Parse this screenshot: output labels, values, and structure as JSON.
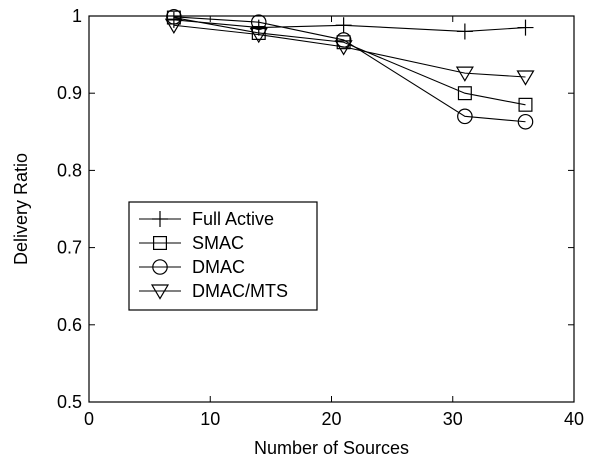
{
  "chart_data": {
    "type": "line",
    "title": "",
    "xlabel": "Number of Sources",
    "ylabel": "Delivery Ratio",
    "xlim": [
      0,
      40
    ],
    "ylim": [
      0.5,
      1.0
    ],
    "xticks": [
      "0",
      "10",
      "20",
      "30",
      "40"
    ],
    "yticks": [
      "0.5",
      "0.6",
      "0.7",
      "0.8",
      "0.9",
      "1"
    ],
    "grid": false,
    "legend_position": "center-left",
    "series": [
      {
        "name": "Full Active",
        "marker": "plus",
        "x": [
          7,
          14,
          21,
          31,
          36
        ],
        "values": [
          0.995,
          0.985,
          0.988,
          0.98,
          0.985
        ]
      },
      {
        "name": "SMAC",
        "marker": "square",
        "x": [
          7,
          14,
          21,
          31,
          36
        ],
        "values": [
          0.998,
          0.978,
          0.966,
          0.9,
          0.885
        ]
      },
      {
        "name": "DMAC",
        "marker": "circle",
        "x": [
          7,
          14,
          21,
          31,
          36
        ],
        "values": [
          0.999,
          0.992,
          0.969,
          0.87,
          0.863
        ]
      },
      {
        "name": "DMAC/MTS",
        "marker": "triangle-down",
        "x": [
          7,
          14,
          21,
          31,
          36
        ],
        "values": [
          0.988,
          0.976,
          0.96,
          0.926,
          0.921
        ]
      }
    ]
  }
}
